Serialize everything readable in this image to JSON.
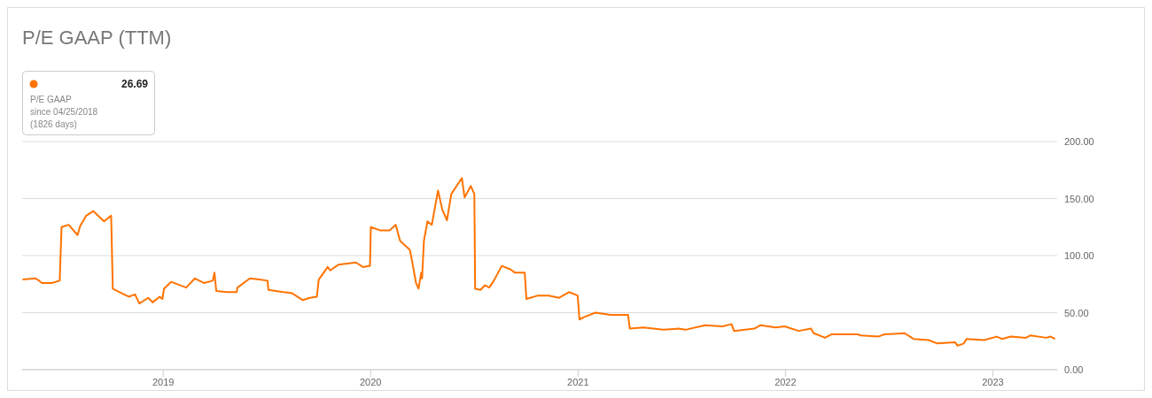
{
  "chart_data": {
    "type": "line",
    "title": "P/E GAAP (TTM)",
    "annotations": [
      "26.69",
      "P/E GAAP",
      "since 04/25/2018",
      "(1826 days)"
    ],
    "x": [
      2018.322,
      2018.386,
      2018.416,
      2018.463,
      2018.501,
      2018.51,
      2018.544,
      2018.587,
      2018.6,
      2018.629,
      2018.663,
      2018.715,
      2018.749,
      2018.757,
      2018.8,
      2018.834,
      2018.864,
      2018.885,
      2018.928,
      2018.949,
      2018.983,
      2018.996,
      2019.004,
      2019.038,
      2019.111,
      2019.153,
      2019.196,
      2019.239,
      2019.247,
      2019.256,
      2019.311,
      2019.354,
      2019.358,
      2019.418,
      2019.464,
      2019.503,
      2019.507,
      2019.579,
      2019.622,
      2019.673,
      2019.707,
      2019.741,
      2019.75,
      2019.793,
      2019.805,
      2019.844,
      2019.929,
      2019.963,
      2019.997,
      2020.001,
      2020.048,
      2020.091,
      2020.121,
      2020.142,
      2020.189,
      2020.197,
      2020.219,
      2020.231,
      2020.244,
      2020.248,
      2020.257,
      2020.274,
      2020.295,
      2020.325,
      2020.346,
      2020.368,
      2020.389,
      2020.44,
      2020.453,
      2020.483,
      2020.5,
      2020.504,
      2020.53,
      2020.551,
      2020.572,
      2020.594,
      2020.632,
      2020.674,
      2020.696,
      2020.743,
      2020.751,
      2020.807,
      2020.858,
      2020.909,
      2020.956,
      2020.998,
      2021.007,
      2021.028,
      2021.084,
      2021.156,
      2021.241,
      2021.25,
      2021.314,
      2021.412,
      2021.484,
      2021.518,
      2021.612,
      2021.697,
      2021.74,
      2021.752,
      2021.85,
      2021.88,
      2021.953,
      2021.995,
      2022.064,
      2022.123,
      2022.136,
      2022.191,
      2022.221,
      2022.349,
      2022.362,
      2022.447,
      2022.477,
      2022.575,
      2022.617,
      2022.69,
      2022.732,
      2022.818,
      2022.83,
      2022.86,
      2022.873,
      2022.958,
      2023.018,
      2023.044,
      2023.086,
      2023.159,
      2023.18,
      2023.257,
      2023.278,
      2023.3
    ],
    "series": [
      {
        "color": "#ff7300",
        "values": [
          79,
          80,
          76,
          76,
          78,
          125,
          127,
          118,
          126,
          135,
          139,
          130,
          135,
          71,
          67,
          64,
          66,
          58,
          63,
          59,
          64,
          62,
          71,
          77,
          72,
          80,
          76,
          78,
          85,
          69,
          68,
          68,
          72,
          80,
          79,
          78,
          70,
          68,
          67,
          61,
          63,
          64,
          79,
          90,
          87,
          92,
          94,
          90,
          91,
          125,
          122,
          122,
          127,
          113,
          105,
          98,
          76,
          71,
          85,
          80,
          113,
          130,
          127,
          157,
          140,
          131,
          154,
          168,
          151,
          161,
          154,
          71,
          70,
          74,
          72,
          78,
          91,
          88,
          85,
          85,
          62,
          65,
          65,
          63,
          68,
          65,
          44,
          46,
          50,
          48,
          48,
          36,
          37,
          35,
          36,
          35,
          39,
          38,
          40,
          34,
          36,
          39,
          37,
          38,
          34,
          36,
          32,
          28,
          31,
          31,
          30,
          29,
          31,
          32,
          27,
          26,
          23,
          24,
          21,
          23,
          27,
          26,
          29,
          27,
          29,
          28,
          30,
          28,
          29,
          27
        ]
      }
    ],
    "xlim": [
      2018.32,
      2023.31
    ],
    "xticks": [
      2019,
      2020,
      2021,
      2022,
      2023
    ],
    "ylim": [
      0,
      200
    ],
    "yticks": [
      {
        "value": 0,
        "label": "0.00"
      },
      {
        "value": 50,
        "label": "50.00"
      },
      {
        "value": 100,
        "label": "100.00"
      },
      {
        "value": 150,
        "label": "150.00"
      },
      {
        "value": 200,
        "label": "200.00"
      }
    ],
    "grid": "y",
    "marker": "none",
    "line_style": "solid"
  }
}
